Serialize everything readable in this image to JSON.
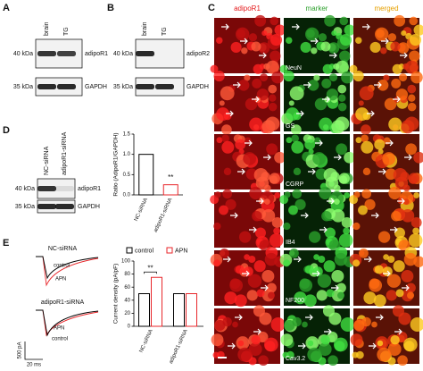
{
  "panel_a": {
    "label": "A",
    "lanes": [
      "brain",
      "TG"
    ],
    "bands": [
      {
        "mw": "40 kDa",
        "name": "adipoR1"
      },
      {
        "mw": "35 kDa",
        "name": "GAPDH"
      }
    ]
  },
  "panel_b": {
    "label": "B",
    "lanes": [
      "brain",
      "TG"
    ],
    "bands": [
      {
        "mw": "40 kDa",
        "name": "adipoR2"
      },
      {
        "mw": "35 kDa",
        "name": "GAPDH"
      }
    ]
  },
  "panel_c": {
    "label": "C",
    "columns": [
      "adipoR1",
      "marker",
      "merged"
    ],
    "rows": [
      "NeuN",
      "GS",
      "CGRP",
      "IB4",
      "NF200",
      "Cav3.2"
    ]
  },
  "panel_d": {
    "label": "D",
    "lanes": [
      "NC-siRNA",
      "adipoR1-siRNA"
    ],
    "bands": [
      {
        "mw": "40 kDa",
        "name": "adipoR1"
      },
      {
        "mw": "35 kDa",
        "name": "GAPDH"
      }
    ]
  },
  "panel_e": {
    "label": "E",
    "traces": [
      {
        "title": "NC-siRNA",
        "labels": [
          "control",
          "APN"
        ]
      },
      {
        "title": "adipoR1-siRNA",
        "labels": [
          "APN",
          "control"
        ]
      }
    ],
    "scale": [
      "500 pA",
      "20 ms"
    ]
  },
  "chart_data": [
    {
      "type": "bar",
      "ylabel": "Ratio (AdipoR1/GAPDH)",
      "categories": [
        "NC-siRNA",
        "adipoR1-siRNA"
      ],
      "values": [
        1.0,
        0.25
      ],
      "colors": [
        "#000000",
        "#e8262a"
      ],
      "ylim": [
        0,
        1.5
      ],
      "yticks": [
        {
          "value": 0,
          "label": "0.0"
        },
        {
          "value": 0.5,
          "label": "0.5"
        },
        {
          "value": 1,
          "label": "1.0"
        },
        {
          "value": 1.5,
          "label": "1.5"
        }
      ],
      "annotations": [
        "**"
      ]
    },
    {
      "type": "grouped-bar",
      "ylabel": "Current density (pA/pF)",
      "categories": [
        "NC-siRNA",
        "adipoR1-siRNA"
      ],
      "series": [
        {
          "name": "control",
          "color": "#000000",
          "values": [
            50,
            50
          ]
        },
        {
          "name": "APN",
          "color": "#e8262a",
          "values": [
            75,
            50
          ]
        }
      ],
      "ylim": [
        0,
        100
      ],
      "yticks": [
        0,
        20,
        40,
        60,
        80,
        100
      ],
      "annotations": [
        "**"
      ]
    }
  ]
}
